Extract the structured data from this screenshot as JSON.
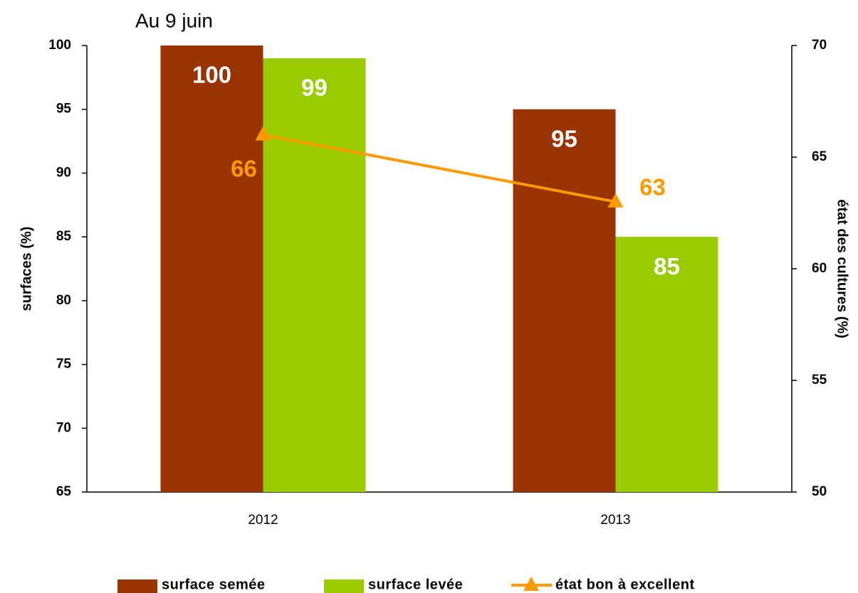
{
  "chart_data": {
    "type": "bar",
    "title": "Au 9 juin",
    "y_label": "surfaces (%)",
    "y2_label": "état des cultures (%)",
    "categories": [
      "2012",
      "2013"
    ],
    "series": [
      {
        "name": "surface semée",
        "color": "#993300",
        "values": [
          100,
          95
        ]
      },
      {
        "name": "surface levée",
        "color": "#99cc00",
        "values": [
          99,
          85
        ]
      },
      {
        "name": "état bon à excellent",
        "color": "#ff9900",
        "values": [
          66,
          63
        ],
        "axis": "y2",
        "type": "line"
      }
    ],
    "ylim": [
      65,
      100
    ],
    "yticks": [
      65,
      70,
      75,
      80,
      85,
      90,
      95,
      100
    ],
    "y2lim": [
      50,
      70
    ],
    "y2ticks": [
      50,
      55,
      60,
      65,
      70
    ],
    "grid": false
  }
}
